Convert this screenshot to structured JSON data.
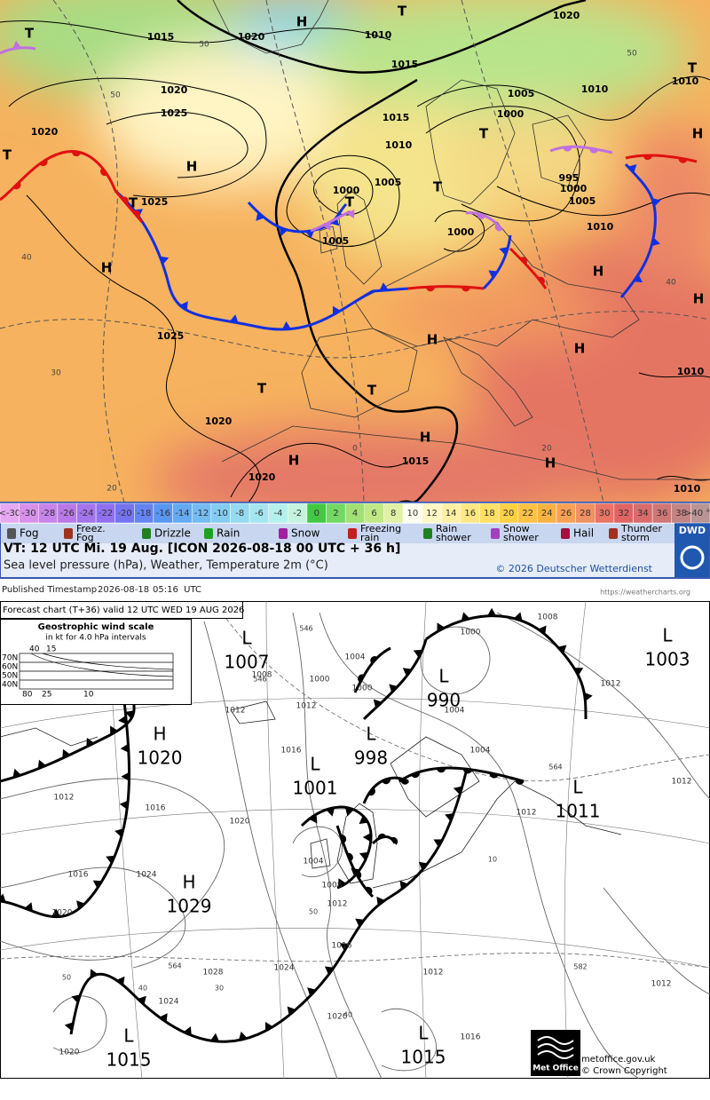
{
  "dwd": {
    "isobar_labels": [
      "1015",
      "1020",
      "1010",
      "1020",
      "1015",
      "1010",
      "1010",
      "1020",
      "1025",
      "1005",
      "1000",
      "1015",
      "1010",
      "1020",
      "1000",
      "1005",
      "995",
      "1000",
      "1005",
      "1025",
      "1005",
      "1000",
      "1010",
      "1025",
      "1020",
      "1015",
      "1020",
      "1010",
      "1010"
    ],
    "centers": [
      "T",
      "H",
      "T",
      "T",
      "H",
      "T",
      "H",
      "T",
      "T",
      "T",
      "T",
      "H",
      "H",
      "H",
      "H",
      "H",
      "T",
      "T",
      "H",
      "H",
      "H"
    ],
    "isotherm_labels": [
      "50",
      "50",
      "40",
      "30",
      "20",
      "0",
      "20",
      "40",
      "50"
    ],
    "temperature_scale": [
      {
        "label": "<-30",
        "color": "#e6a8f2"
      },
      {
        "label": "-30",
        "color": "#d890ec"
      },
      {
        "label": "-28",
        "color": "#c884ea"
      },
      {
        "label": "-26",
        "color": "#b878e6"
      },
      {
        "label": "-24",
        "color": "#a474ec"
      },
      {
        "label": "-22",
        "color": "#9070f0"
      },
      {
        "label": "-20",
        "color": "#7474f2"
      },
      {
        "label": "-18",
        "color": "#6484f2"
      },
      {
        "label": "-16",
        "color": "#5896f2"
      },
      {
        "label": "-14",
        "color": "#64aaf2"
      },
      {
        "label": "-12",
        "color": "#74bcf2"
      },
      {
        "label": "-10",
        "color": "#84ccf2"
      },
      {
        "label": "-8",
        "color": "#94daf0"
      },
      {
        "label": "-6",
        "color": "#a4e6f0"
      },
      {
        "label": "-4",
        "color": "#b4f0ee"
      },
      {
        "label": "-2",
        "color": "#c4f4e0"
      },
      {
        "label": "0",
        "color": "#44c844"
      },
      {
        "label": "2",
        "color": "#74d864"
      },
      {
        "label": "4",
        "color": "#a0e074"
      },
      {
        "label": "6",
        "color": "#c0e884"
      },
      {
        "label": "8",
        "color": "#e0f0a4"
      },
      {
        "label": "10",
        "color": "#fffff0"
      },
      {
        "label": "12",
        "color": "#fff8c4"
      },
      {
        "label": "14",
        "color": "#fff0a4"
      },
      {
        "label": "16",
        "color": "#ffe884"
      },
      {
        "label": "18",
        "color": "#ffe064"
      },
      {
        "label": "20",
        "color": "#ffd044"
      },
      {
        "label": "22",
        "color": "#ffc244"
      },
      {
        "label": "24",
        "color": "#f8b244"
      },
      {
        "label": "26",
        "color": "#f8a054"
      },
      {
        "label": "28",
        "color": "#f09064"
      },
      {
        "label": "30",
        "color": "#e87464"
      },
      {
        "label": "32",
        "color": "#e06464"
      },
      {
        "label": "34",
        "color": "#d86c6c"
      },
      {
        "label": "36",
        "color": "#d07676"
      },
      {
        "label": "38",
        "color": "#c48484"
      },
      {
        "label": ">40 °C",
        "color": "#b89494"
      }
    ],
    "weather_legend": [
      [
        "Fog"
      ],
      [
        "Freez.",
        "Fog"
      ],
      [
        "Drizzle"
      ],
      [
        "Rain"
      ],
      [
        "Snow"
      ],
      [
        "Freezing",
        "rain"
      ],
      [
        "Rain",
        "shower"
      ],
      [
        "Snow",
        "shower"
      ],
      [
        "Hail"
      ],
      [
        "Thunder",
        "storm"
      ]
    ],
    "valid_time": "VT: 12 UTC Mi.  19 Aug. [ICON 2026-08-18  00 UTC + 36 h]",
    "description": "Sea level pressure (hPa), Weather, Temperature 2m (°C)",
    "copyright": "© 2026 Deutscher Wetterdienst",
    "logo": "DWD"
  },
  "metoffice": {
    "published_label": "Published Timestamp",
    "published_date": "2026-08-18",
    "published_time": "05:16  UTC",
    "url": "https://weathercharts.org",
    "forecast_title": "Forecast chart (T+36) valid 12 UTC WED 19  AUG 2026",
    "wind_scale": {
      "title": "Geostrophic wind scale",
      "subtitle": "in kt for 4.0 hPa intervals",
      "top_labels": [
        "40",
        "15"
      ],
      "latitudes": [
        "70N",
        "60N",
        "50N",
        "40N"
      ],
      "bottom_labels": [
        "80",
        "25",
        "10"
      ]
    },
    "centers": [
      {
        "letter": "L",
        "value": "1007"
      },
      {
        "letter": "H",
        "value": "1020"
      },
      {
        "letter": "L",
        "value": "1001"
      },
      {
        "letter": "L",
        "value": "998"
      },
      {
        "letter": "L",
        "value": "990"
      },
      {
        "letter": "L",
        "value": "1003"
      },
      {
        "letter": "L",
        "value": "1011"
      },
      {
        "letter": "H",
        "value": "1029"
      },
      {
        "letter": "L",
        "value": "1015"
      },
      {
        "letter": "L",
        "value": "1015"
      }
    ],
    "isobar_labels": [
      "1008",
      "1000",
      "1004",
      "1000",
      "1004",
      "1012",
      "1008",
      "1000",
      "1012",
      "1016",
      "1020",
      "1016",
      "1012",
      "1016",
      "1020",
      "1024",
      "1028",
      "1024",
      "1016",
      "1012",
      "1008",
      "1004",
      "1020",
      "1024",
      "1020",
      "1016",
      "1012",
      "1012",
      "1004",
      "1012",
      "1012",
      "1012"
    ],
    "thickness_labels": [
      "564",
      "582",
      "564",
      "546",
      "546"
    ],
    "minor_labels": [
      "50",
      "40",
      "30",
      "40",
      "50",
      "10"
    ],
    "logo": "Met Office",
    "site": "metoffice.gov.uk",
    "copyright": "© Crown Copyright"
  }
}
